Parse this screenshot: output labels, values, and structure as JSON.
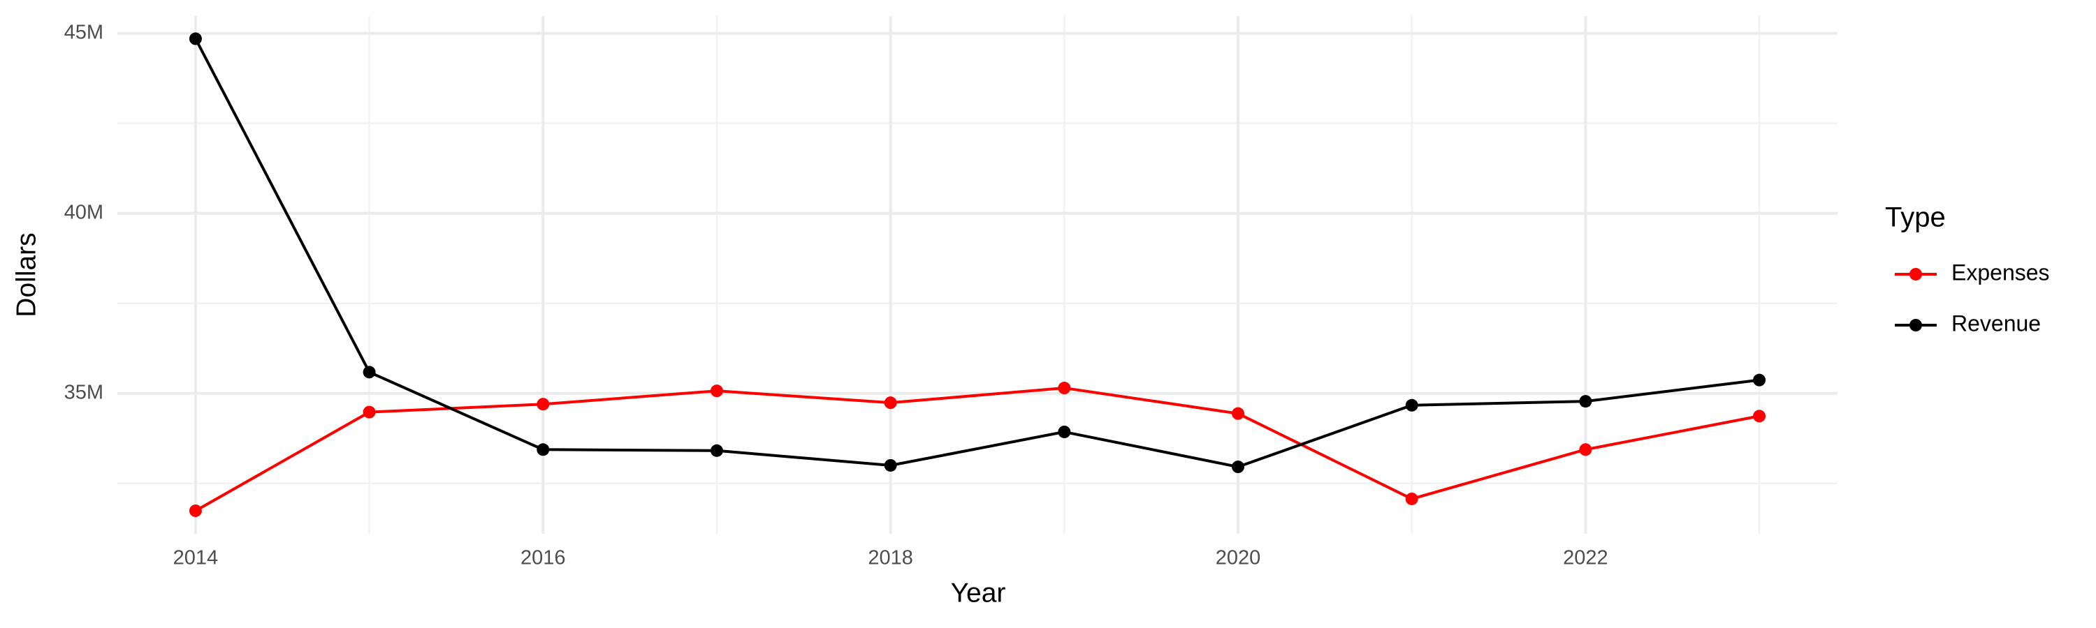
{
  "chart_data": {
    "type": "line",
    "x_label": "Year",
    "y_label": "Dollars",
    "legend_title": "Type",
    "legend_position": "right",
    "grid": true,
    "x": [
      2014,
      2015,
      2016,
      2017,
      2018,
      2019,
      2020,
      2021,
      2022,
      2023
    ],
    "series": [
      {
        "name": "Expenses",
        "color": "#ff0000",
        "values": [
          31740000,
          34480000,
          34700000,
          35070000,
          34740000,
          35150000,
          34440000,
          32070000,
          33440000,
          34370000
        ]
      },
      {
        "name": "Revenue",
        "color": "#000000",
        "values": [
          44850000,
          35590000,
          33440000,
          33410000,
          33000000,
          33930000,
          32960000,
          34670000,
          34780000,
          35370000
        ]
      }
    ],
    "xlim": [
      2013.55,
      2023.45
    ],
    "xticks": [
      2014,
      2016,
      2018,
      2020,
      2022
    ],
    "x_minor_ticks": [
      2015,
      2017,
      2019,
      2021,
      2023
    ],
    "ylim": [
      31100000,
      45480000
    ],
    "yticks": [
      {
        "value": 35000000,
        "label": "35M"
      },
      {
        "value": 40000000,
        "label": "40M"
      },
      {
        "value": 45000000,
        "label": "45M"
      }
    ],
    "y_minor_ticks": [
      32500000,
      37500000,
      42500000
    ]
  }
}
